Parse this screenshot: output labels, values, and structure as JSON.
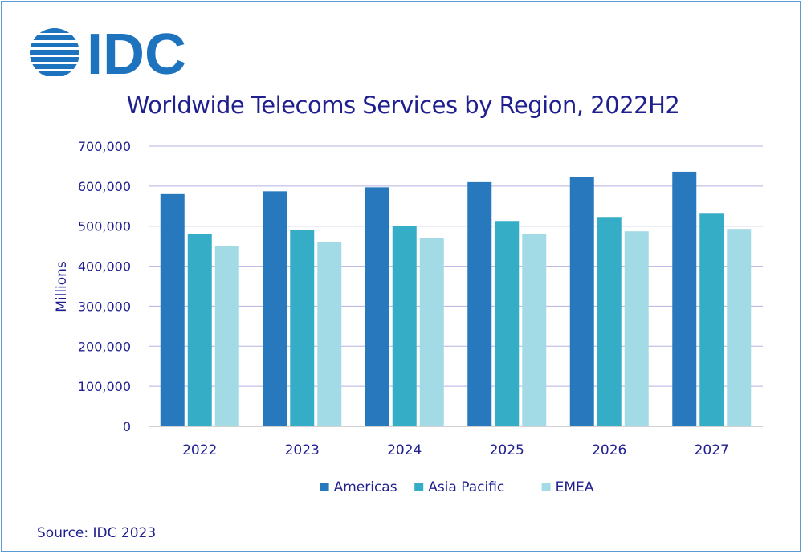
{
  "logo": {
    "text": "IDC",
    "icon": "idc-globe-icon",
    "color": "#1e73be"
  },
  "source": "Source: IDC 2023",
  "colors": {
    "series": [
      "#2878be",
      "#36adc6",
      "#a2dbe5"
    ],
    "grid": "#b3b3e0",
    "axis_text": "#1f1f8f",
    "title": "#1f1f8f"
  },
  "chart_data": {
    "type": "bar",
    "title": "Worldwide Telecoms Services by Region, 2022H2",
    "xlabel": "",
    "ylabel": "Millions",
    "ylim": [
      0,
      700000
    ],
    "yticks": [
      "0",
      "100,000",
      "200,000",
      "300,000",
      "400,000",
      "500,000",
      "600,000",
      "700,000"
    ],
    "categories": [
      "2022",
      "2023",
      "2024",
      "2025",
      "2026",
      "2027"
    ],
    "series": [
      {
        "name": "Americas",
        "values": [
          580000,
          587000,
          597000,
          610000,
          623000,
          636000
        ]
      },
      {
        "name": "Asia Pacific",
        "values": [
          480000,
          490000,
          500000,
          513000,
          523000,
          533000
        ]
      },
      {
        "name": "EMEA",
        "values": [
          450000,
          460000,
          470000,
          480000,
          487000,
          493000
        ]
      }
    ],
    "grid": true,
    "legend": "bottom"
  }
}
